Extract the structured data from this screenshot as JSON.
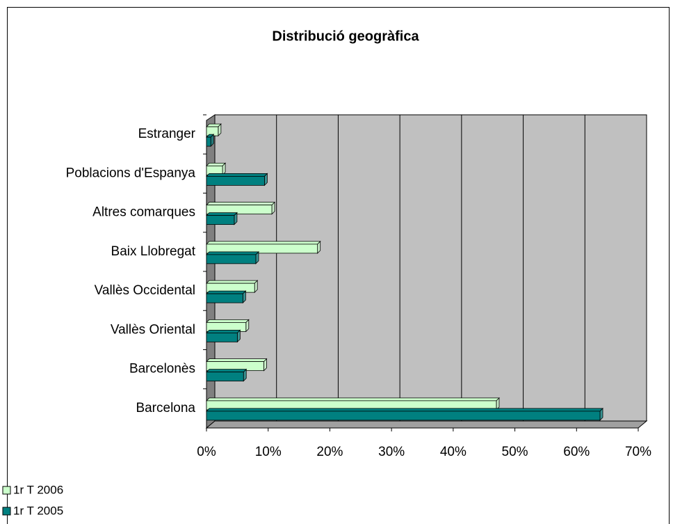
{
  "chart_data": {
    "type": "bar3d",
    "orientation": "horizontal",
    "title": "Distribució geogràfica",
    "categories": [
      "Barcelona",
      "Barcelonès",
      "Vallès Oriental",
      "Vallès Occidental",
      "Baix Llobregat",
      "Altres comarques",
      "Poblacions d'Espanya",
      "Estranger"
    ],
    "series": [
      {
        "name": "1r T 2006",
        "color": "#ccffcc",
        "values": [
          47,
          9.3,
          6.4,
          7.8,
          18,
          10.6,
          2.6,
          1.9
        ]
      },
      {
        "name": "1r T 2005",
        "color": "#008080",
        "values": [
          63.8,
          6,
          5,
          5.9,
          8,
          4.5,
          9.4,
          0.7
        ]
      }
    ],
    "xlim": [
      0,
      70
    ],
    "xticks": [
      {
        "value": 0,
        "label": "0%"
      },
      {
        "value": 10,
        "label": "10%"
      },
      {
        "value": 20,
        "label": "20%"
      },
      {
        "value": 30,
        "label": "30%"
      },
      {
        "value": 40,
        "label": "40%"
      },
      {
        "value": 50,
        "label": "50%"
      },
      {
        "value": 60,
        "label": "60%"
      },
      {
        "value": 70,
        "label": "70%"
      }
    ],
    "grid": true,
    "legend": "bottom-left"
  }
}
